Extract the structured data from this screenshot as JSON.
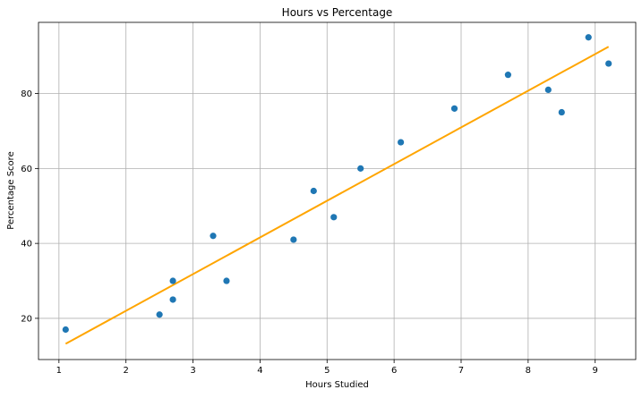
{
  "chart_data": {
    "type": "scatter",
    "title": "Hours vs Percentage",
    "xlabel": "Hours Studied",
    "ylabel": "Percentage Score",
    "xlim": [
      0.695,
      9.605
    ],
    "ylim": [
      9.0,
      99.0
    ],
    "xticks": [
      1,
      2,
      3,
      4,
      5,
      6,
      7,
      8,
      9
    ],
    "yticks": [
      20,
      40,
      60,
      80
    ],
    "grid": true,
    "series": [
      {
        "kind": "scatter",
        "color": "#1f77b4",
        "points": [
          {
            "x": 1.1,
            "y": 17
          },
          {
            "x": 2.5,
            "y": 21
          },
          {
            "x": 2.7,
            "y": 25
          },
          {
            "x": 2.7,
            "y": 30
          },
          {
            "x": 3.3,
            "y": 42
          },
          {
            "x": 3.5,
            "y": 30
          },
          {
            "x": 4.5,
            "y": 41
          },
          {
            "x": 4.8,
            "y": 54
          },
          {
            "x": 5.1,
            "y": 47
          },
          {
            "x": 5.5,
            "y": 60
          },
          {
            "x": 6.1,
            "y": 67
          },
          {
            "x": 6.9,
            "y": 76
          },
          {
            "x": 7.7,
            "y": 85
          },
          {
            "x": 8.3,
            "y": 81
          },
          {
            "x": 8.5,
            "y": 75
          },
          {
            "x": 8.9,
            "y": 95
          },
          {
            "x": 9.2,
            "y": 88
          }
        ]
      },
      {
        "kind": "line",
        "color": "#ffa500",
        "points": [
          {
            "x": 1.1,
            "y": 13.2
          },
          {
            "x": 9.2,
            "y": 92.5
          }
        ]
      }
    ]
  }
}
